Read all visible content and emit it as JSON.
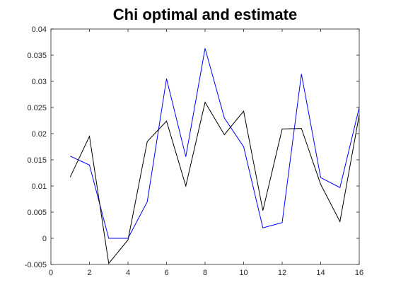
{
  "chart_data": {
    "type": "line",
    "title": "Chi optimal and estimate",
    "xlabel": "",
    "ylabel": "",
    "xlim": [
      0,
      16
    ],
    "ylim": [
      -0.005,
      0.04
    ],
    "xticks": [
      "0",
      "2",
      "4",
      "6",
      "8",
      "10",
      "12",
      "14",
      "16"
    ],
    "yticks": [
      "-0.005",
      "0",
      "0.005",
      "0.01",
      "0.015",
      "0.02",
      "0.025",
      "0.03",
      "0.035",
      "0.04"
    ],
    "grid": false,
    "legend": "none",
    "x": [
      1,
      2,
      3,
      4,
      5,
      6,
      7,
      8,
      9,
      10,
      11,
      12,
      13,
      14,
      15,
      16
    ],
    "series": [
      {
        "color": "#0000ff",
        "values": [
          0.0157,
          0.014,
          0.0,
          0.0,
          0.007,
          0.0305,
          0.0156,
          0.0363,
          0.023,
          0.0175,
          0.002,
          0.003,
          0.0314,
          0.0116,
          0.0097,
          0.025
        ]
      },
      {
        "color": "#000000",
        "values": [
          0.0117,
          0.0195,
          -0.0048,
          -0.0003,
          0.0185,
          0.0224,
          0.01,
          0.026,
          0.0198,
          0.0243,
          0.0053,
          0.0209,
          0.021,
          0.0103,
          0.0032,
          0.0236
        ]
      }
    ]
  }
}
